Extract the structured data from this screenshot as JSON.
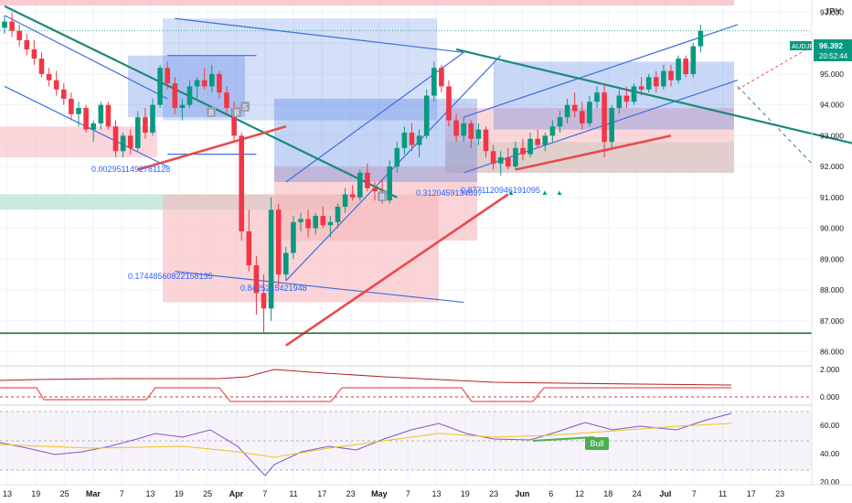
{
  "header": {
    "currency": "JPY"
  },
  "ticker": {
    "symbol": "AUDJPY",
    "price": "96.392",
    "countdown": "20:52:44"
  },
  "colors": {
    "up": "#089981",
    "down": "#f23645",
    "channel_blue": "#3d6fe0",
    "trend_teal": "#1b8a78",
    "pred_red": "#e74c4c",
    "zone_green": "#b6e3d4",
    "zone_red": "#f7b7bd",
    "rsi_line": "#7e57c2",
    "rsi_ma": "#f0c419"
  },
  "chart_data": {
    "type": "candlestick",
    "price_axis": {
      "ticks": [
        "97.000",
        "96.000",
        "95.000",
        "94.000",
        "93.000",
        "92.000",
        "91.000",
        "90.000",
        "89.000",
        "88.000",
        "87.000",
        "86.000"
      ],
      "range": [
        85.6,
        97.4
      ]
    },
    "time_axis": {
      "labels": [
        "13",
        "19",
        "25",
        "Mar",
        "7",
        "13",
        "19",
        "25",
        "Apr",
        "7",
        "11",
        "17",
        "23",
        "May",
        "7",
        "13",
        "19",
        "23",
        "Jun",
        "6",
        "12",
        "18",
        "24",
        "Jul",
        "7",
        "11",
        "17",
        "23"
      ]
    },
    "annotations": [
      "0.0029511492781128",
      "0.17448560822158135",
      "0.8425215421948",
      "0.3120459134037",
      "0.8771120946191095"
    ],
    "markers": [
      "B",
      "S",
      "B",
      "B"
    ],
    "label_bull": "Bull",
    "osc1_axis": [
      "2.000",
      "0.000"
    ],
    "rsi_axis": [
      "60.00",
      "40.00",
      "20.00"
    ],
    "candles": [
      [
        96.5,
        96.9,
        96.3,
        96.7
      ],
      [
        96.7,
        97.0,
        96.2,
        96.4
      ],
      [
        96.4,
        96.6,
        95.9,
        96.1
      ],
      [
        96.1,
        96.3,
        95.6,
        95.8
      ],
      [
        95.8,
        96.1,
        95.3,
        95.5
      ],
      [
        95.5,
        95.7,
        94.9,
        95.0
      ],
      [
        95.0,
        95.2,
        94.6,
        94.8
      ],
      [
        94.8,
        95.1,
        94.3,
        94.5
      ],
      [
        94.5,
        94.7,
        94.0,
        94.2
      ],
      [
        94.2,
        94.4,
        93.5,
        93.7
      ],
      [
        93.7,
        94.1,
        93.3,
        93.9
      ],
      [
        93.9,
        94.0,
        93.1,
        93.2
      ],
      [
        93.2,
        93.5,
        92.8,
        93.4
      ],
      [
        93.4,
        94.1,
        93.2,
        94.0
      ],
      [
        94.0,
        94.1,
        93.2,
        93.3
      ],
      [
        93.3,
        93.5,
        92.3,
        92.5
      ],
      [
        92.5,
        93.1,
        92.3,
        93.0
      ],
      [
        93.0,
        93.2,
        92.4,
        92.6
      ],
      [
        92.6,
        93.8,
        92.5,
        93.6
      ],
      [
        93.6,
        93.9,
        92.9,
        93.1
      ],
      [
        93.1,
        94.2,
        93.0,
        94.0
      ],
      [
        94.0,
        95.3,
        93.9,
        95.2
      ],
      [
        95.2,
        95.4,
        94.5,
        94.7
      ],
      [
        94.7,
        94.9,
        93.7,
        93.9
      ],
      [
        93.9,
        94.2,
        93.5,
        94.0
      ],
      [
        94.0,
        94.8,
        93.9,
        94.6
      ],
      [
        94.6,
        94.9,
        94.2,
        94.8
      ],
      [
        94.8,
        95.2,
        94.5,
        94.6
      ],
      [
        94.6,
        95.3,
        94.4,
        95.0
      ],
      [
        95.0,
        95.1,
        94.2,
        94.4
      ],
      [
        94.4,
        94.6,
        93.7,
        93.9
      ],
      [
        93.9,
        94.1,
        92.8,
        93.0
      ],
      [
        93.0,
        93.1,
        89.6,
        89.9
      ],
      [
        89.9,
        90.6,
        88.6,
        88.8
      ],
      [
        88.8,
        89.1,
        87.2,
        87.9
      ],
      [
        87.9,
        88.5,
        86.6,
        87.4
      ],
      [
        87.4,
        91.0,
        87.0,
        90.6
      ],
      [
        90.6,
        90.8,
        88.1,
        88.5
      ],
      [
        88.5,
        89.4,
        88.3,
        89.2
      ],
      [
        89.2,
        90.4,
        89.0,
        90.2
      ],
      [
        90.2,
        90.5,
        89.9,
        90.3
      ],
      [
        90.3,
        90.6,
        89.7,
        90.0
      ],
      [
        90.0,
        90.5,
        89.8,
        90.4
      ],
      [
        90.4,
        90.7,
        90.0,
        90.1
      ],
      [
        90.1,
        90.4,
        89.7,
        90.2
      ],
      [
        90.2,
        90.8,
        90.0,
        90.7
      ],
      [
        90.7,
        91.3,
        90.5,
        91.1
      ],
      [
        91.1,
        91.4,
        90.9,
        91.0
      ],
      [
        91.0,
        91.9,
        90.9,
        91.8
      ],
      [
        91.8,
        92.1,
        91.2,
        91.3
      ],
      [
        91.3,
        91.5,
        90.9,
        91.2
      ],
      [
        91.2,
        91.6,
        90.8,
        90.9
      ],
      [
        90.9,
        92.2,
        90.8,
        92.0
      ],
      [
        92.0,
        92.8,
        91.8,
        92.6
      ],
      [
        92.6,
        93.3,
        92.4,
        93.1
      ],
      [
        93.1,
        93.4,
        92.5,
        92.7
      ],
      [
        92.7,
        93.2,
        92.3,
        93.0
      ],
      [
        93.0,
        94.5,
        92.9,
        94.3
      ],
      [
        94.3,
        95.4,
        94.1,
        95.2
      ],
      [
        95.2,
        95.3,
        94.4,
        94.6
      ],
      [
        94.6,
        94.8,
        93.3,
        93.5
      ],
      [
        93.5,
        93.7,
        92.8,
        93.0
      ],
      [
        93.0,
        93.6,
        92.8,
        93.4
      ],
      [
        93.4,
        93.5,
        92.6,
        92.9
      ],
      [
        92.9,
        93.4,
        92.7,
        93.2
      ],
      [
        93.2,
        93.3,
        92.3,
        92.5
      ],
      [
        92.5,
        92.7,
        91.9,
        92.1
      ],
      [
        92.1,
        92.5,
        91.7,
        92.3
      ],
      [
        92.3,
        92.6,
        91.9,
        92.0
      ],
      [
        92.0,
        92.8,
        91.9,
        92.6
      ],
      [
        92.6,
        92.9,
        92.2,
        92.4
      ],
      [
        92.4,
        93.1,
        92.3,
        92.9
      ],
      [
        92.9,
        93.2,
        92.6,
        92.7
      ],
      [
        92.7,
        93.1,
        92.5,
        93.0
      ],
      [
        93.0,
        93.5,
        92.8,
        93.3
      ],
      [
        93.3,
        93.8,
        93.1,
        93.6
      ],
      [
        93.6,
        94.2,
        93.4,
        94.0
      ],
      [
        94.0,
        94.4,
        93.6,
        93.8
      ],
      [
        93.8,
        94.1,
        93.2,
        93.4
      ],
      [
        93.4,
        94.3,
        93.3,
        94.1
      ],
      [
        94.1,
        94.6,
        93.9,
        94.4
      ],
      [
        94.4,
        94.7,
        92.3,
        92.8
      ],
      [
        92.8,
        94.0,
        92.6,
        93.9
      ],
      [
        93.9,
        94.5,
        93.7,
        94.3
      ],
      [
        94.3,
        94.6,
        93.9,
        94.1
      ],
      [
        94.1,
        94.7,
        94.0,
        94.6
      ],
      [
        94.6,
        94.9,
        94.3,
        94.5
      ],
      [
        94.5,
        95.0,
        94.4,
        94.9
      ],
      [
        94.9,
        95.1,
        94.4,
        94.6
      ],
      [
        94.6,
        95.3,
        94.5,
        95.1
      ],
      [
        95.1,
        95.3,
        94.6,
        94.8
      ],
      [
        94.8,
        95.6,
        94.7,
        95.5
      ],
      [
        95.5,
        95.6,
        94.9,
        95.0
      ],
      [
        95.0,
        96.0,
        94.9,
        95.9
      ],
      [
        95.9,
        96.6,
        95.7,
        96.4
      ]
    ],
    "patterns": [
      {
        "line": [
          [
            0,
            96.9
          ],
          [
            22,
            94.2
          ]
        ]
      },
      {
        "line": [
          [
            0,
            94.6
          ],
          [
            22,
            92.0
          ]
        ]
      },
      {
        "line": [
          [
            22,
            95.6
          ],
          [
            34,
            95.6
          ]
        ]
      },
      {
        "line": [
          [
            22,
            92.4
          ],
          [
            34,
            92.4
          ]
        ]
      },
      {
        "line": [
          [
            23,
            96.8
          ],
          [
            62,
            95.7
          ]
        ]
      },
      {
        "line": [
          [
            23,
            88.6
          ],
          [
            62,
            87.6
          ]
        ]
      },
      {
        "line": [
          [
            38,
            88.3
          ],
          [
            67,
            95.6
          ]
        ]
      },
      {
        "line": [
          [
            38,
            91.5
          ],
          [
            62,
            95.7
          ]
        ]
      },
      {
        "line": [
          [
            62,
            93.6
          ],
          [
            99,
            96.6
          ]
        ]
      },
      {
        "line": [
          [
            62,
            91.8
          ],
          [
            99,
            94.8
          ]
        ]
      }
    ],
    "trendlines": [
      {
        "line": [
          [
            0,
            97.2
          ],
          [
            53,
            91.0
          ]
        ]
      },
      {
        "line": [
          [
            61,
            95.8
          ],
          [
            119,
            92.5
          ]
        ]
      },
      {
        "line": [
          [
            18,
            91.9
          ],
          [
            38,
            93.3
          ]
        ]
      },
      {
        "line": [
          [
            38,
            86.2
          ],
          [
            68,
            91.1
          ]
        ]
      },
      {
        "line": [
          [
            69,
            91.9
          ],
          [
            90,
            93.0
          ]
        ]
      }
    ],
    "horizontal_levels": [
      86.6
    ]
  }
}
